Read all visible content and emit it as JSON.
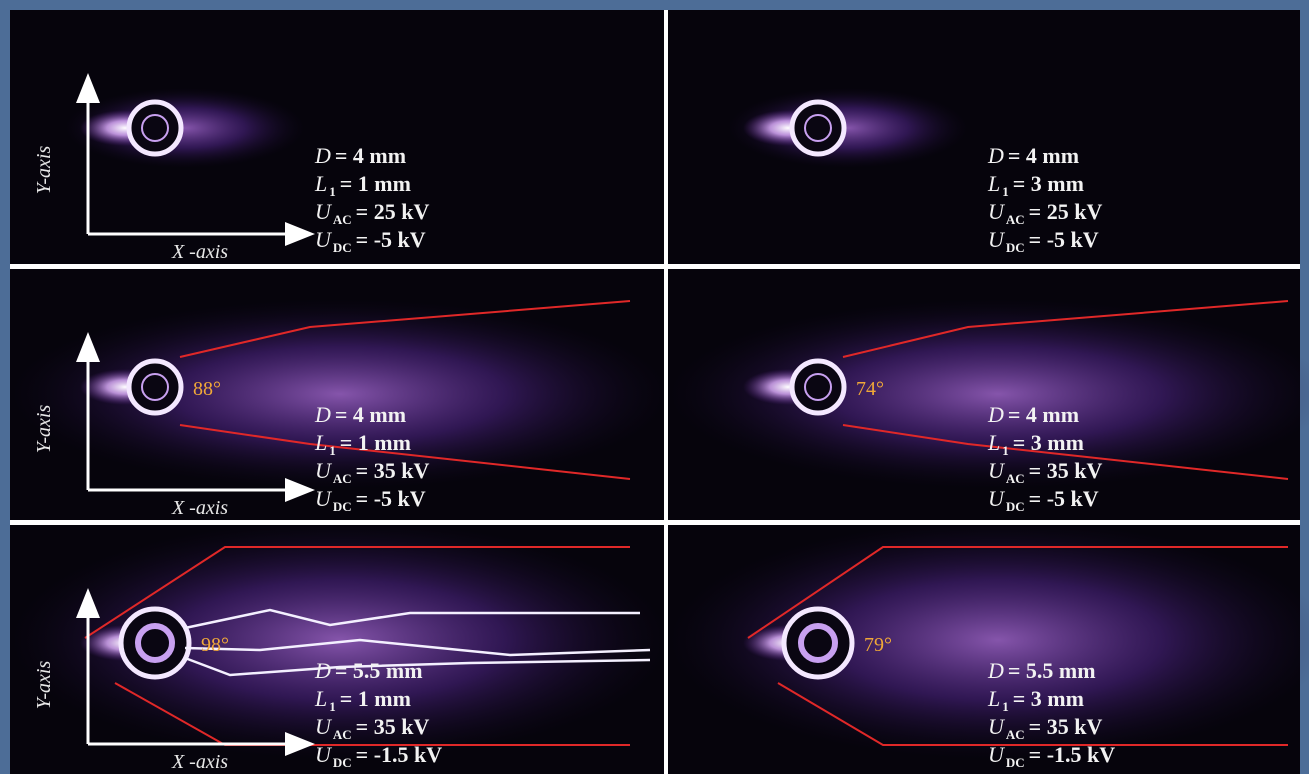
{
  "panels": [
    {
      "axis_labels": {
        "y": "Y-axis",
        "x": "X -axis"
      },
      "params": [
        {
          "var": "D",
          "text": "= 4 mm"
        },
        {
          "var": "L",
          "sub": "1",
          "text": "= 1 mm"
        },
        {
          "var": "U",
          "sub": "AC",
          "text": "= 25 kV"
        },
        {
          "var": "U",
          "sub": "DC",
          "text": "= -5 kV"
        }
      ]
    },
    {
      "params": [
        {
          "var": "D",
          "text": "= 4 mm"
        },
        {
          "var": "L",
          "sub": "1",
          "text": "= 3 mm"
        },
        {
          "var": "U",
          "sub": "AC",
          "text": "= 25 kV"
        },
        {
          "var": "U",
          "sub": "DC",
          "text": "= -5 kV"
        }
      ]
    },
    {
      "axis_labels": {
        "y": "Y-axis",
        "x": "X -axis"
      },
      "angle": "88°",
      "params": [
        {
          "var": "D",
          "text": "= 4 mm"
        },
        {
          "var": "L",
          "sub": "1",
          "text": "= 1 mm"
        },
        {
          "var": "U",
          "sub": "AC",
          "text": "= 35 kV"
        },
        {
          "var": "U",
          "sub": "DC",
          "text": "= -5 kV"
        }
      ]
    },
    {
      "angle": "74°",
      "params": [
        {
          "var": "D",
          "text": "= 4 mm"
        },
        {
          "var": "L",
          "sub": "1",
          "text": "= 3 mm"
        },
        {
          "var": "U",
          "sub": "AC",
          "text": "= 35 kV"
        },
        {
          "var": "U",
          "sub": "DC",
          "text": "= -5 kV"
        }
      ]
    },
    {
      "axis_labels": {
        "y": "Y-axis",
        "x": "X -axis"
      },
      "angle": "98°",
      "params": [
        {
          "var": "D",
          "text": "= 5.5 mm"
        },
        {
          "var": "L",
          "sub": "1",
          "text": "= 1 mm"
        },
        {
          "var": "U",
          "sub": "AC",
          "text": "= 35 kV"
        },
        {
          "var": "U",
          "sub": "DC",
          "text": "= -1.5 kV"
        }
      ]
    },
    {
      "angle": "79°",
      "params": [
        {
          "var": "D",
          "text": "= 5.5 mm"
        },
        {
          "var": "L",
          "sub": "1",
          "text": "= 3 mm"
        },
        {
          "var": "U",
          "sub": "AC",
          "text": "= 35 kV"
        },
        {
          "var": "U",
          "sub": "DC",
          "text": "= -1.5 kV"
        }
      ]
    }
  ]
}
